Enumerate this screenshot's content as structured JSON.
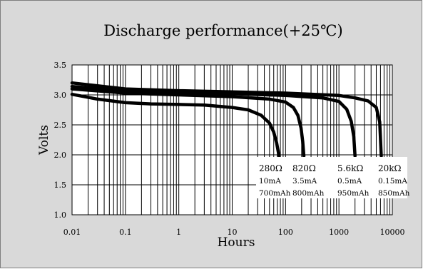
{
  "chart_data": {
    "type": "line",
    "title": "Discharge performance(+25℃)",
    "xlabel": "Hours",
    "ylabel": "Volts",
    "x_scale": "log",
    "xlim": [
      0.01,
      10000
    ],
    "ylim": [
      1.0,
      3.5
    ],
    "grid": true,
    "x_ticks": [
      "0.01",
      "0.1",
      "1",
      "10",
      "100",
      "1000",
      "10000"
    ],
    "y_ticks": [
      "1.0",
      "1.5",
      "2.0",
      "2.5",
      "3.0",
      "3.5"
    ],
    "colors": {
      "background": "#d9d9d9",
      "plot": "#ffffff",
      "line": "#000000"
    },
    "series": [
      {
        "name": "280Ω",
        "current": "10mA",
        "capacity": "700mAh",
        "x": [
          0.01,
          0.03,
          0.1,
          0.3,
          1,
          3,
          10,
          20,
          35,
          50,
          60,
          68,
          73,
          76
        ],
        "y": [
          3.01,
          2.93,
          2.87,
          2.85,
          2.84,
          2.83,
          2.79,
          2.75,
          2.66,
          2.53,
          2.38,
          2.2,
          2.05,
          1.98
        ]
      },
      {
        "name": "820Ω",
        "current": "3.5mA",
        "capacity": "800mAh",
        "x": [
          0.01,
          0.1,
          1,
          10,
          50,
          100,
          140,
          170,
          195,
          210,
          220
        ],
        "y": [
          3.1,
          3.03,
          3.0,
          2.97,
          2.93,
          2.88,
          2.79,
          2.66,
          2.45,
          2.22,
          1.98
        ]
      },
      {
        "name": "5.6kΩ",
        "current": "0.5mA",
        "capacity": "950mAh",
        "x": [
          0.01,
          0.1,
          1,
          10,
          100,
          500,
          1000,
          1400,
          1700,
          1900,
          2000
        ],
        "y": [
          3.14,
          3.07,
          3.04,
          3.02,
          2.99,
          2.95,
          2.89,
          2.76,
          2.56,
          2.3,
          1.98
        ]
      },
      {
        "name": "20kΩ",
        "current": "0.15mA",
        "capacity": "850mAh",
        "x": [
          0.01,
          0.1,
          1,
          10,
          100,
          1000,
          2000,
          3500,
          5000,
          5800,
          6200
        ],
        "y": [
          3.2,
          3.1,
          3.07,
          3.05,
          3.03,
          2.99,
          2.95,
          2.9,
          2.79,
          2.55,
          1.98
        ]
      }
    ]
  }
}
